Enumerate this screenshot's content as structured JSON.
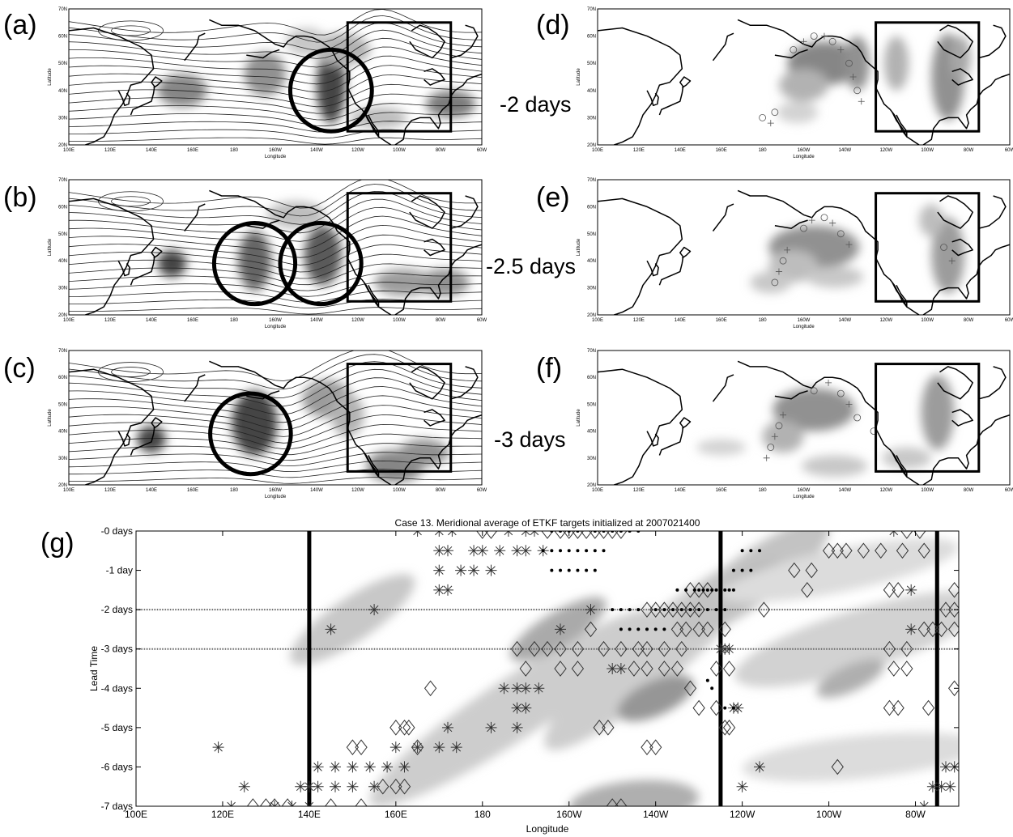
{
  "map_panels": [
    {
      "letter": "(a)",
      "lead_label": "-2 days",
      "ylabel": "Latitude",
      "xlabel": "Longitude",
      "type": "contours"
    },
    {
      "letter": "(b)",
      "lead_label": "-2.5 days",
      "ylabel": "Latitude",
      "xlabel": "Longitude",
      "type": "contours"
    },
    {
      "letter": "(c)",
      "lead_label": "-3 days",
      "ylabel": "Latitude",
      "xlabel": "Longitude",
      "type": "contours"
    },
    {
      "letter": "(d)",
      "lead_label": "",
      "ylabel": "Latitude",
      "xlabel": "Longitude",
      "type": "targets"
    },
    {
      "letter": "(e)",
      "lead_label": "",
      "ylabel": "Latitude",
      "xlabel": "Longitude",
      "type": "targets"
    },
    {
      "letter": "(f)",
      "lead_label": "",
      "ylabel": "Latitude",
      "xlabel": "Longitude",
      "type": "targets"
    }
  ],
  "map_xticks": [
    "100E",
    "120E",
    "140E",
    "160E",
    "180",
    "160W",
    "140W",
    "120W",
    "100W",
    "80W",
    "60W"
  ],
  "map_yticks": [
    "20N",
    "30N",
    "40N",
    "50N",
    "60N",
    "70N"
  ],
  "circles": {
    "a": [
      {
        "lon": 227,
        "lat": 40
      }
    ],
    "b": [
      {
        "lon": 190,
        "lat": 39
      },
      {
        "lon": 222,
        "lat": 39
      }
    ],
    "c": [
      {
        "lon": 188,
        "lat": 39
      }
    ]
  },
  "target_box": {
    "lon_min": 235,
    "lon_max": 285,
    "lat_min": 25,
    "lat_max": 65
  },
  "chart_data": {
    "type": "scatter",
    "title": "Case 13. Meridional average of ETKF targets initialized at 2007021400",
    "panel_letter": "(g)",
    "xlabel": "Longitude",
    "ylabel": "Lead Time",
    "xlim": [
      100,
      290
    ],
    "ylim": [
      -7,
      0
    ],
    "xticks": [
      "100E",
      "120E",
      "140E",
      "160E",
      "180",
      "160W",
      "140W",
      "120W",
      "100W",
      "80W"
    ],
    "xtick_values": [
      100,
      120,
      140,
      160,
      180,
      200,
      220,
      240,
      260,
      280
    ],
    "yticks": [
      "-0 days",
      "-1 day",
      "-2 days",
      "-3 days",
      "-4 days",
      "-5 days",
      "-6 days",
      "-7 days"
    ],
    "ytick_values": [
      0,
      -1,
      -2,
      -3,
      -4,
      -5,
      -6,
      -7
    ],
    "vertical_lines": [
      140,
      235,
      285
    ],
    "horizontal_dashed": [
      -2,
      -3
    ],
    "series": [
      {
        "marker": "asterisk",
        "points": [
          [
            165,
            0
          ],
          [
            170,
            0
          ],
          [
            173,
            0
          ],
          [
            186,
            0
          ],
          [
            190,
            0
          ],
          [
            192,
            0
          ],
          [
            275,
            0
          ],
          [
            170,
            -0.5
          ],
          [
            172,
            -0.5
          ],
          [
            178,
            -0.5
          ],
          [
            180,
            -0.5
          ],
          [
            184,
            -0.5
          ],
          [
            188,
            -0.5
          ],
          [
            190,
            -0.5
          ],
          [
            194,
            -0.5
          ],
          [
            170,
            -1
          ],
          [
            175,
            -1
          ],
          [
            178,
            -1
          ],
          [
            182,
            -1
          ],
          [
            170,
            -1.5
          ],
          [
            172,
            -1.5
          ],
          [
            155,
            -2
          ],
          [
            205,
            -2
          ],
          [
            145,
            -2.5
          ],
          [
            198,
            -2.5
          ],
          [
            210,
            -3.5
          ],
          [
            212,
            -3.5
          ],
          [
            185,
            -4
          ],
          [
            188,
            -4
          ],
          [
            190,
            -4
          ],
          [
            193,
            -4
          ],
          [
            188,
            -4.5
          ],
          [
            190,
            -4.5
          ],
          [
            172,
            -5
          ],
          [
            182,
            -5
          ],
          [
            188,
            -5
          ],
          [
            160,
            -5.5
          ],
          [
            165,
            -5.5
          ],
          [
            170,
            -5.5
          ],
          [
            174,
            -5.5
          ],
          [
            119,
            -5.5
          ],
          [
            142,
            -6
          ],
          [
            146,
            -6
          ],
          [
            150,
            -6
          ],
          [
            154,
            -6
          ],
          [
            158,
            -6
          ],
          [
            162,
            -6
          ],
          [
            244,
            -6
          ],
          [
            287,
            -6
          ],
          [
            289,
            -6
          ],
          [
            125,
            -6.5
          ],
          [
            138,
            -6.5
          ],
          [
            140,
            -6.5
          ],
          [
            142,
            -6.5
          ],
          [
            146,
            -6.5
          ],
          [
            150,
            -6.5
          ],
          [
            155,
            -6.5
          ],
          [
            240,
            -6.5
          ],
          [
            284,
            -6.5
          ],
          [
            286,
            -6.5
          ],
          [
            288,
            -6.5
          ],
          [
            122,
            -7
          ],
          [
            132,
            -7
          ],
          [
            136,
            -7
          ],
          [
            140,
            -7
          ],
          [
            282,
            -7
          ],
          [
            279,
            -2.5
          ],
          [
            279,
            -1.5
          ],
          [
            235,
            -3
          ],
          [
            236,
            -3
          ],
          [
            237,
            -3
          ],
          [
            238,
            -4.5
          ],
          [
            239,
            -4.5
          ]
        ]
      },
      {
        "marker": "diamond",
        "points": [
          [
            180,
            0
          ],
          [
            182,
            0
          ],
          [
            195,
            0
          ],
          [
            198,
            0
          ],
          [
            200,
            0
          ],
          [
            202,
            0
          ],
          [
            204,
            0
          ],
          [
            206,
            0
          ],
          [
            208,
            0
          ],
          [
            210,
            0
          ],
          [
            212,
            0
          ],
          [
            278,
            0
          ],
          [
            281,
            0
          ],
          [
            260,
            -0.5
          ],
          [
            262,
            -0.5
          ],
          [
            264,
            -0.5
          ],
          [
            268,
            -0.5
          ],
          [
            272,
            -0.5
          ],
          [
            277,
            -0.5
          ],
          [
            282,
            -0.5
          ],
          [
            252,
            -1
          ],
          [
            256,
            -1
          ],
          [
            228,
            -1.5
          ],
          [
            230,
            -1.5
          ],
          [
            232,
            -1.5
          ],
          [
            255,
            -1.5
          ],
          [
            274,
            -1.5
          ],
          [
            276,
            -1.5
          ],
          [
            289,
            -1.5
          ],
          [
            218,
            -2
          ],
          [
            220,
            -2
          ],
          [
            222,
            -2
          ],
          [
            224,
            -2
          ],
          [
            226,
            -2
          ],
          [
            228,
            -2
          ],
          [
            230,
            -2
          ],
          [
            245,
            -2
          ],
          [
            287,
            -2
          ],
          [
            289,
            -2
          ],
          [
            205,
            -2.5
          ],
          [
            225,
            -2.5
          ],
          [
            227,
            -2.5
          ],
          [
            230,
            -2.5
          ],
          [
            232,
            -2.5
          ],
          [
            236,
            -2.5
          ],
          [
            282,
            -2.5
          ],
          [
            284,
            -2.5
          ],
          [
            286,
            -2.5
          ],
          [
            289,
            -2.5
          ],
          [
            188,
            -3
          ],
          [
            192,
            -3
          ],
          [
            195,
            -3
          ],
          [
            198,
            -3
          ],
          [
            202,
            -3
          ],
          [
            208,
            -3
          ],
          [
            212,
            -3
          ],
          [
            216,
            -3
          ],
          [
            218,
            -3
          ],
          [
            222,
            -3
          ],
          [
            226,
            -3
          ],
          [
            274,
            -3
          ],
          [
            278,
            -3
          ],
          [
            190,
            -3.5
          ],
          [
            198,
            -3.5
          ],
          [
            202,
            -3.5
          ],
          [
            215,
            -3.5
          ],
          [
            218,
            -3.5
          ],
          [
            222,
            -3.5
          ],
          [
            225,
            -3.5
          ],
          [
            234,
            -3.5
          ],
          [
            237,
            -3.5
          ],
          [
            275,
            -3.5
          ],
          [
            278,
            -3.5
          ],
          [
            168,
            -4
          ],
          [
            228,
            -4
          ],
          [
            289,
            -4
          ],
          [
            230,
            -4.5
          ],
          [
            234,
            -4.5
          ],
          [
            274,
            -4.5
          ],
          [
            276,
            -4.5
          ],
          [
            283,
            -4.5
          ],
          [
            160,
            -5
          ],
          [
            162,
            -5
          ],
          [
            163,
            -5
          ],
          [
            207,
            -5
          ],
          [
            209,
            -5
          ],
          [
            236,
            -5
          ],
          [
            237,
            -5
          ],
          [
            150,
            -5.5
          ],
          [
            152,
            -5.5
          ],
          [
            165,
            -5.5
          ],
          [
            218,
            -5.5
          ],
          [
            220,
            -5.5
          ],
          [
            262,
            -6
          ],
          [
            157,
            -6.5
          ],
          [
            160,
            -6.5
          ],
          [
            162,
            -6.5
          ],
          [
            127,
            -7
          ],
          [
            130,
            -7
          ],
          [
            132,
            -7
          ],
          [
            135,
            -7
          ],
          [
            152,
            -7
          ],
          [
            145,
            -7
          ],
          [
            210,
            -7
          ],
          [
            212,
            -7
          ]
        ]
      },
      {
        "marker": "dot",
        "points": [
          [
            196,
            0
          ],
          [
            198,
            0
          ],
          [
            200,
            0
          ],
          [
            202,
            0
          ],
          [
            206,
            0
          ],
          [
            208,
            0
          ],
          [
            210,
            0
          ],
          [
            212,
            0
          ],
          [
            214,
            0
          ],
          [
            216,
            0
          ],
          [
            194,
            -0.5
          ],
          [
            196,
            -0.5
          ],
          [
            198,
            -0.5
          ],
          [
            200,
            -0.5
          ],
          [
            202,
            -0.5
          ],
          [
            204,
            -0.5
          ],
          [
            206,
            -0.5
          ],
          [
            208,
            -0.5
          ],
          [
            196,
            -1
          ],
          [
            198,
            -1
          ],
          [
            200,
            -1
          ],
          [
            202,
            -1
          ],
          [
            204,
            -1
          ],
          [
            206,
            -1
          ],
          [
            240,
            -0.5
          ],
          [
            242,
            -0.5
          ],
          [
            244,
            -0.5
          ],
          [
            238,
            -1
          ],
          [
            240,
            -1
          ],
          [
            242,
            -1
          ],
          [
            225,
            -1.5
          ],
          [
            227,
            -1.5
          ],
          [
            229,
            -1.5
          ],
          [
            231,
            -1.5
          ],
          [
            233,
            -1.5
          ],
          [
            235,
            -1.5
          ],
          [
            237,
            -1.5
          ],
          [
            230,
            -1.5
          ],
          [
            232,
            -1.5
          ],
          [
            234,
            -1.5
          ],
          [
            236,
            -1.5
          ],
          [
            238,
            -1.5
          ],
          [
            228,
            -2
          ],
          [
            230,
            -2
          ],
          [
            232,
            -2
          ],
          [
            234,
            -2
          ],
          [
            236,
            -2
          ],
          [
            224,
            -2
          ],
          [
            226,
            -2
          ],
          [
            220,
            -2
          ],
          [
            222,
            -2
          ],
          [
            210,
            -2
          ],
          [
            212,
            -2
          ],
          [
            214,
            -2
          ],
          [
            216,
            -2
          ],
          [
            212,
            -2.5
          ],
          [
            214,
            -2.5
          ],
          [
            216,
            -2.5
          ],
          [
            218,
            -2.5
          ],
          [
            220,
            -2.5
          ],
          [
            222,
            -2.5
          ],
          [
            232,
            -3.8
          ],
          [
            233,
            -4
          ],
          [
            236,
            -4.5
          ],
          [
            238,
            -4.5
          ]
        ]
      }
    ]
  }
}
